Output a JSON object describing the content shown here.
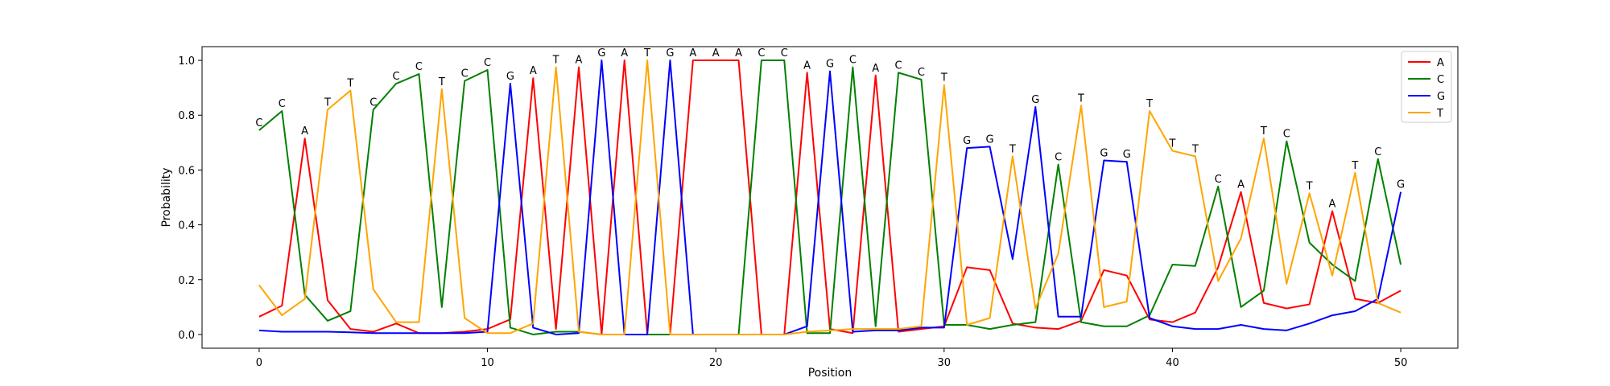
{
  "chart_data": {
    "type": "line",
    "xlabel": "Position",
    "ylabel": "Probability",
    "xlim": [
      -2.5,
      52.5
    ],
    "ylim": [
      -0.05,
      1.05
    ],
    "xticks": [
      0,
      10,
      20,
      30,
      40,
      50
    ],
    "yticks": [
      0.0,
      0.2,
      0.4,
      0.6,
      0.8,
      1.0
    ],
    "ytick_labels": [
      "0.0",
      "0.2",
      "0.4",
      "0.6",
      "0.8",
      "1.0"
    ],
    "grid": false,
    "legend_position": "top-right",
    "x": [
      0,
      1,
      2,
      3,
      4,
      5,
      6,
      7,
      8,
      9,
      10,
      11,
      12,
      13,
      14,
      15,
      16,
      17,
      18,
      19,
      20,
      21,
      22,
      23,
      24,
      25,
      26,
      27,
      28,
      29,
      30,
      31,
      32,
      33,
      34,
      35,
      36,
      37,
      38,
      39,
      40,
      41,
      42,
      43,
      44,
      45,
      46,
      47,
      48,
      49,
      50
    ],
    "series": [
      {
        "name": "A",
        "color": "#ff0000",
        "values": [
          0.065,
          0.105,
          0.715,
          0.125,
          0.02,
          0.01,
          0.04,
          0.005,
          0.005,
          0.01,
          0.02,
          0.055,
          0.935,
          0.02,
          0.975,
          0.0,
          1.0,
          0.0,
          0.0,
          1.0,
          1.0,
          1.0,
          0.0,
          0.0,
          0.955,
          0.02,
          0.005,
          0.945,
          0.01,
          0.02,
          0.03,
          0.245,
          0.235,
          0.04,
          0.025,
          0.02,
          0.05,
          0.235,
          0.215,
          0.055,
          0.045,
          0.08,
          0.245,
          0.52,
          0.115,
          0.095,
          0.11,
          0.45,
          0.13,
          0.115,
          0.16
        ]
      },
      {
        "name": "C",
        "color": "#008000",
        "values": [
          0.745,
          0.815,
          0.145,
          0.05,
          0.085,
          0.82,
          0.915,
          0.95,
          0.1,
          0.925,
          0.965,
          0.025,
          0.0,
          0.01,
          0.01,
          0.0,
          0.0,
          0.0,
          0.0,
          0.0,
          0.0,
          0.0,
          1.0,
          1.0,
          0.005,
          0.005,
          0.975,
          0.03,
          0.955,
          0.93,
          0.035,
          0.035,
          0.02,
          0.035,
          0.045,
          0.62,
          0.045,
          0.03,
          0.03,
          0.07,
          0.255,
          0.25,
          0.54,
          0.1,
          0.16,
          0.705,
          0.335,
          0.255,
          0.195,
          0.64,
          0.255
        ]
      },
      {
        "name": "G",
        "color": "#0000ff",
        "values": [
          0.015,
          0.01,
          0.01,
          0.01,
          0.008,
          0.005,
          0.005,
          0.005,
          0.005,
          0.005,
          0.01,
          0.915,
          0.025,
          0.0,
          0.005,
          1.0,
          0.0,
          0.0,
          1.0,
          0.0,
          0.0,
          0.0,
          0.0,
          0.0,
          0.03,
          0.96,
          0.01,
          0.015,
          0.015,
          0.025,
          0.025,
          0.68,
          0.685,
          0.275,
          0.83,
          0.065,
          0.065,
          0.635,
          0.63,
          0.06,
          0.03,
          0.02,
          0.02,
          0.035,
          0.02,
          0.015,
          0.04,
          0.07,
          0.085,
          0.13,
          0.52
        ]
      },
      {
        "name": "T",
        "color": "#ffa500",
        "values": [
          0.18,
          0.07,
          0.13,
          0.82,
          0.89,
          0.165,
          0.045,
          0.045,
          0.895,
          0.06,
          0.005,
          0.005,
          0.04,
          0.975,
          0.01,
          0.0,
          0.0,
          1.0,
          0.0,
          0.0,
          0.0,
          0.0,
          0.0,
          0.0,
          0.01,
          0.015,
          0.02,
          0.02,
          0.02,
          0.03,
          0.91,
          0.035,
          0.06,
          0.65,
          0.095,
          0.295,
          0.835,
          0.1,
          0.12,
          0.815,
          0.67,
          0.65,
          0.195,
          0.35,
          0.715,
          0.185,
          0.515,
          0.215,
          0.59,
          0.115,
          0.08
        ]
      }
    ],
    "annotations": [
      "C",
      "C",
      "A",
      "T",
      "T",
      "C",
      "C",
      "C",
      "T",
      "C",
      "C",
      "G",
      "A",
      "T",
      "A",
      "G",
      "A",
      "T",
      "G",
      "A",
      "A",
      "A",
      "C",
      "C",
      "A",
      "G",
      "C",
      "A",
      "C",
      "C",
      "T",
      "G",
      "G",
      "T",
      "G",
      "C",
      "T",
      "G",
      "G",
      "T",
      "T",
      "T",
      "C",
      "A",
      "T",
      "C",
      "T",
      "A",
      "T",
      "C",
      "G"
    ]
  }
}
